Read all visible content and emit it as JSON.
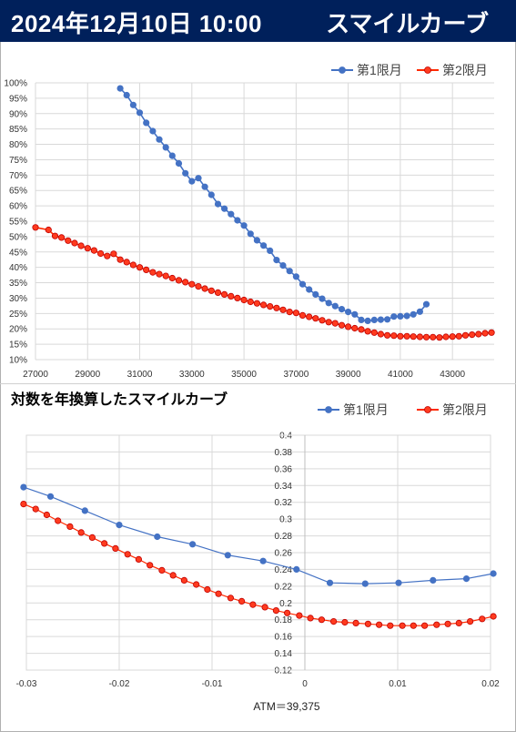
{
  "header": {
    "date_time": "2024年12月10日 10:00",
    "title": "スマイルカーブ"
  },
  "colors": {
    "header_bg": "#00205b",
    "series1": "#4472c4",
    "series2": "#ff2a00",
    "series2_fill": "#ff3b1f",
    "grid": "#d9d9d9"
  },
  "chart_data": [
    {
      "type": "line",
      "title": "",
      "xlabel": "",
      "ylabel": "",
      "xlim": [
        27000,
        44600
      ],
      "ylim": [
        0.1,
        1.0
      ],
      "x_ticks": [
        27000,
        29000,
        31000,
        33000,
        35000,
        37000,
        39000,
        41000,
        43000
      ],
      "x_tick_labels": [
        "27000",
        "29000",
        "31000",
        "33000",
        "35000",
        "37000",
        "39000",
        "41000",
        "43000"
      ],
      "y_ticks": [
        0.1,
        0.15,
        0.2,
        0.25,
        0.3,
        0.35,
        0.4,
        0.45,
        0.5,
        0.55,
        0.6,
        0.65,
        0.7,
        0.75,
        0.8,
        0.85,
        0.9,
        0.95,
        1.0
      ],
      "y_tick_labels": [
        "10%",
        "15%",
        "20%",
        "25%",
        "30%",
        "35%",
        "40%",
        "45%",
        "50%",
        "55%",
        "60%",
        "65%",
        "70%",
        "75%",
        "80%",
        "85%",
        "90%",
        "95%",
        "100%"
      ],
      "grid": true,
      "legend_position": "top-right",
      "series": [
        {
          "name": "第1限月",
          "color": "#4472c4",
          "x": [
            30250,
            30500,
            30750,
            31000,
            31250,
            31500,
            31750,
            32000,
            32250,
            32500,
            32750,
            33000,
            33250,
            33500,
            33750,
            34000,
            34250,
            34500,
            34750,
            35000,
            35250,
            35500,
            35750,
            36000,
            36250,
            36500,
            36750,
            37000,
            37250,
            37500,
            37750,
            38000,
            38250,
            38500,
            38750,
            39000,
            39250,
            39500,
            39750,
            40000,
            40250,
            40500,
            40750,
            41000,
            41250,
            41500,
            41750,
            42000
          ],
          "y": [
            0.982,
            0.96,
            0.928,
            0.903,
            0.87,
            0.843,
            0.816,
            0.79,
            0.763,
            0.738,
            0.706,
            0.68,
            0.69,
            0.662,
            0.636,
            0.606,
            0.591,
            0.573,
            0.553,
            0.536,
            0.509,
            0.488,
            0.471,
            0.454,
            0.424,
            0.406,
            0.388,
            0.37,
            0.345,
            0.328,
            0.312,
            0.298,
            0.284,
            0.274,
            0.264,
            0.255,
            0.247,
            0.229,
            0.226,
            0.229,
            0.23,
            0.231,
            0.24,
            0.241,
            0.242,
            0.247,
            0.256,
            0.28
          ]
        },
        {
          "name": "第2限月",
          "color": "#ff2a00",
          "x": [
            27000,
            27500,
            27750,
            28000,
            28250,
            28500,
            28750,
            29000,
            29250,
            29500,
            29750,
            30000,
            30250,
            30500,
            30750,
            31000,
            31250,
            31500,
            31750,
            32000,
            32250,
            32500,
            32750,
            33000,
            33250,
            33500,
            33750,
            34000,
            34250,
            34500,
            34750,
            35000,
            35250,
            35500,
            35750,
            36000,
            36250,
            36500,
            36750,
            37000,
            37250,
            37500,
            37750,
            38000,
            38250,
            38500,
            38750,
            39000,
            39250,
            39500,
            39750,
            40000,
            40250,
            40500,
            40750,
            41000,
            41250,
            41500,
            41750,
            42000,
            42250,
            42500,
            42750,
            43000,
            43250,
            43500,
            43750,
            44000,
            44250,
            44500
          ],
          "y": [
            0.53,
            0.522,
            0.502,
            0.497,
            0.487,
            0.479,
            0.47,
            0.462,
            0.455,
            0.445,
            0.437,
            0.444,
            0.425,
            0.417,
            0.408,
            0.4,
            0.392,
            0.384,
            0.378,
            0.372,
            0.365,
            0.358,
            0.352,
            0.345,
            0.338,
            0.331,
            0.324,
            0.318,
            0.312,
            0.306,
            0.3,
            0.294,
            0.288,
            0.283,
            0.278,
            0.273,
            0.268,
            0.262,
            0.255,
            0.252,
            0.244,
            0.239,
            0.234,
            0.228,
            0.222,
            0.218,
            0.212,
            0.207,
            0.202,
            0.198,
            0.192,
            0.188,
            0.183,
            0.179,
            0.178,
            0.176,
            0.176,
            0.175,
            0.174,
            0.173,
            0.173,
            0.172,
            0.174,
            0.175,
            0.176,
            0.179,
            0.181,
            0.183,
            0.186,
            0.188
          ]
        }
      ]
    },
    {
      "type": "line",
      "title": "対数を年換算したスマイルカーブ",
      "xlabel": "ATM＝39,375",
      "ylabel": "",
      "xlim": [
        -0.03,
        0.02
      ],
      "ylim": [
        0.12,
        0.4
      ],
      "x_ticks": [
        -0.03,
        -0.02,
        -0.01,
        0,
        0.01,
        0.02
      ],
      "x_tick_labels": [
        "-0.03",
        "-0.02",
        "-0.01",
        "0",
        "0.01",
        "0.02"
      ],
      "y_ticks": [
        0.12,
        0.14,
        0.16,
        0.18,
        0.2,
        0.22,
        0.24,
        0.26,
        0.28,
        0.3,
        0.32,
        0.34,
        0.36,
        0.38,
        0.4
      ],
      "y_tick_labels": [
        "0.12",
        "0.14",
        "0.16",
        "0.18",
        "0.2",
        "0.22",
        "0.24",
        "0.26",
        "0.28",
        "0.3",
        "0.32",
        "0.34",
        "0.36",
        "0.38",
        "0.4"
      ],
      "grid": true,
      "legend_position": "top-right",
      "series": [
        {
          "name": "第1限月",
          "color": "#4472c4",
          "x": [
            -0.0303,
            -0.0274,
            -0.0237,
            -0.02,
            -0.0159,
            -0.0121,
            -0.0083,
            -0.0045,
            -0.0009,
            0.0027,
            0.0065,
            0.0101,
            0.0138,
            0.0174,
            0.0203
          ],
          "y": [
            0.338,
            0.327,
            0.31,
            0.293,
            0.279,
            0.27,
            0.257,
            0.25,
            0.24,
            0.224,
            0.223,
            0.224,
            0.227,
            0.229,
            0.235
          ]
        },
        {
          "name": "第2限月",
          "color": "#ff2a00",
          "x": [
            -0.0303,
            -0.029,
            -0.0278,
            -0.0266,
            -0.0253,
            -0.0241,
            -0.0229,
            -0.0216,
            -0.0204,
            -0.0191,
            -0.0179,
            -0.0167,
            -0.0154,
            -0.0142,
            -0.013,
            -0.0117,
            -0.0105,
            -0.0093,
            -0.008,
            -0.0068,
            -0.0056,
            -0.0043,
            -0.0031,
            -0.0019,
            -0.0006,
            0.0006,
            0.0018,
            0.0031,
            0.0043,
            0.0055,
            0.0068,
            0.008,
            0.0092,
            0.0105,
            0.0117,
            0.0129,
            0.0142,
            0.0154,
            0.0166,
            0.0178,
            0.0191,
            0.0203
          ],
          "y": [
            0.318,
            0.312,
            0.305,
            0.298,
            0.291,
            0.284,
            0.278,
            0.271,
            0.265,
            0.258,
            0.252,
            0.245,
            0.239,
            0.233,
            0.227,
            0.222,
            0.216,
            0.211,
            0.206,
            0.202,
            0.198,
            0.195,
            0.191,
            0.188,
            0.185,
            0.182,
            0.18,
            0.178,
            0.177,
            0.176,
            0.175,
            0.174,
            0.173,
            0.173,
            0.173,
            0.173,
            0.174,
            0.175,
            0.176,
            0.178,
            0.181,
            0.184
          ]
        }
      ]
    }
  ]
}
